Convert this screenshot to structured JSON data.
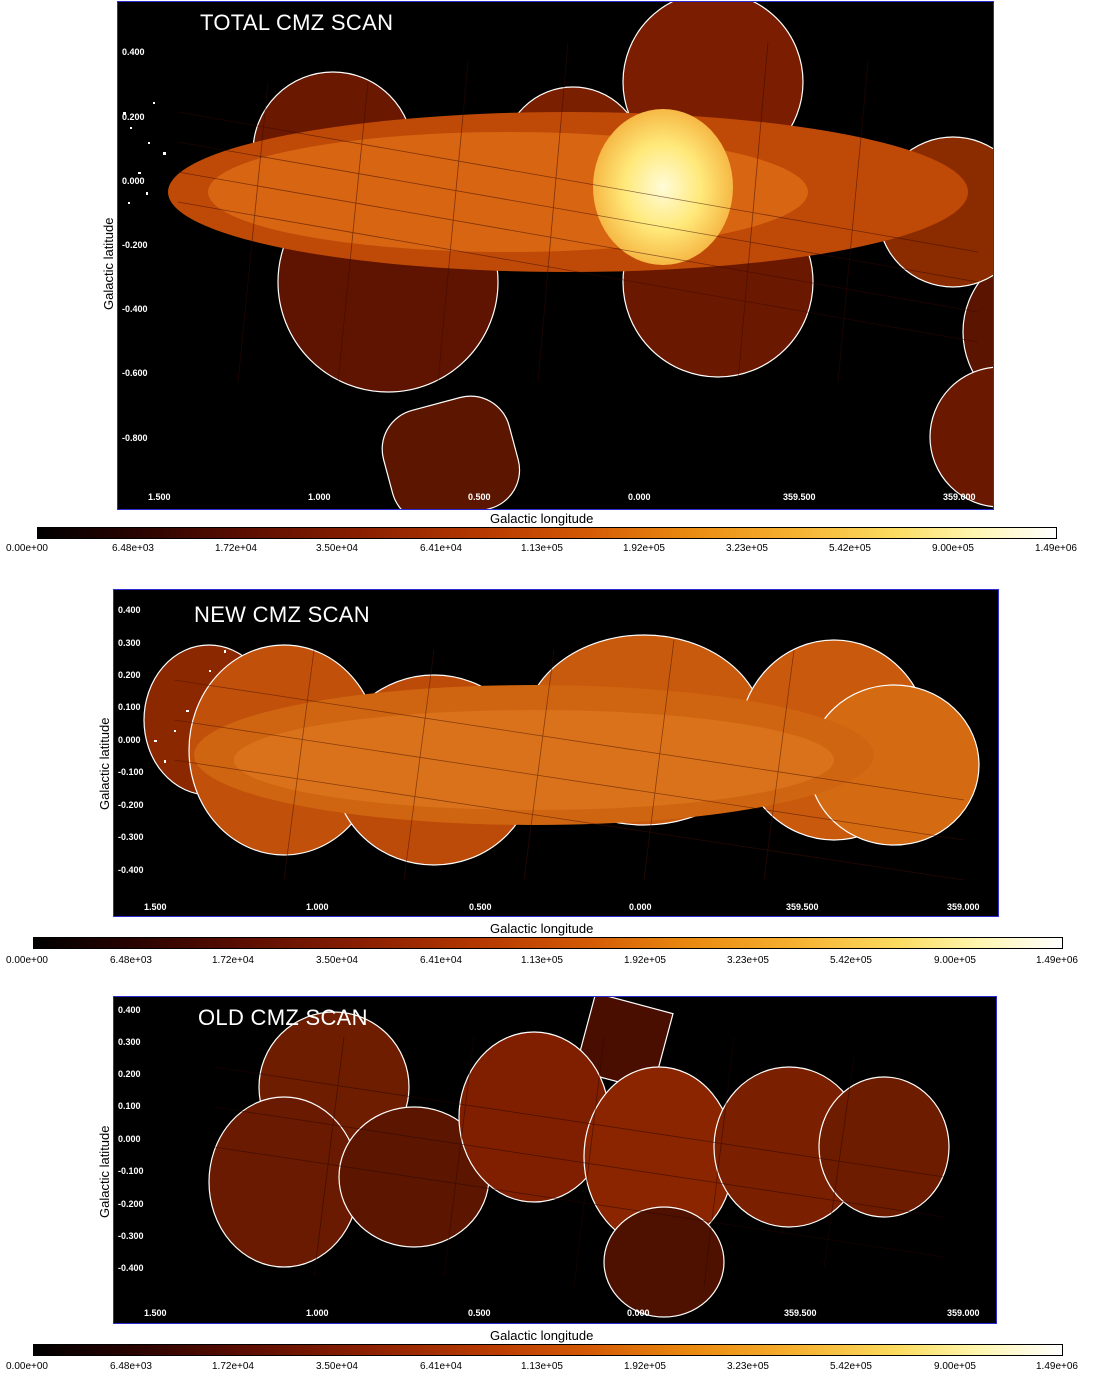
{
  "panels": [
    {
      "title": "TOTAL CMZ SCAN",
      "yticks": [
        "0.400",
        "0.200",
        "0.000",
        "-0.200",
        "-0.400",
        "-0.600",
        "-0.800"
      ],
      "xticks": [
        "1.500",
        "1.000",
        "0.500",
        "0.000",
        "359.500",
        "359.000"
      ]
    },
    {
      "title": "NEW CMZ SCAN",
      "yticks": [
        "0.400",
        "0.300",
        "0.200",
        "0.100",
        "0.000",
        "-0.100",
        "-0.200",
        "-0.300",
        "-0.400"
      ],
      "xticks": [
        "1.500",
        "1.000",
        "0.500",
        "0.000",
        "359.500",
        "359.000"
      ]
    },
    {
      "title": "OLD CMZ SCAN",
      "yticks": [
        "0.400",
        "0.300",
        "0.200",
        "0.100",
        "0.000",
        "-0.100",
        "-0.200",
        "-0.300",
        "-0.400"
      ],
      "xticks": [
        "1.500",
        "1.000",
        "0.500",
        "0.000",
        "359.500",
        "359.000"
      ]
    }
  ],
  "axes": {
    "ylabel": "Galactic latitude",
    "xlabel": "Galactic longitude"
  },
  "colorbar": {
    "labels": [
      "0.00e+00",
      "6.48e+03",
      "1.72e+04",
      "3.50e+04",
      "6.41e+04",
      "1.13e+05",
      "1.92e+05",
      "3.23e+05",
      "5.42e+05",
      "9.00e+05",
      "1.49e+06"
    ],
    "colors": [
      "#000000",
      "#5a0d00",
      "#b73a00",
      "#ea8a10",
      "#fbdc60",
      "#ffffff"
    ]
  }
}
